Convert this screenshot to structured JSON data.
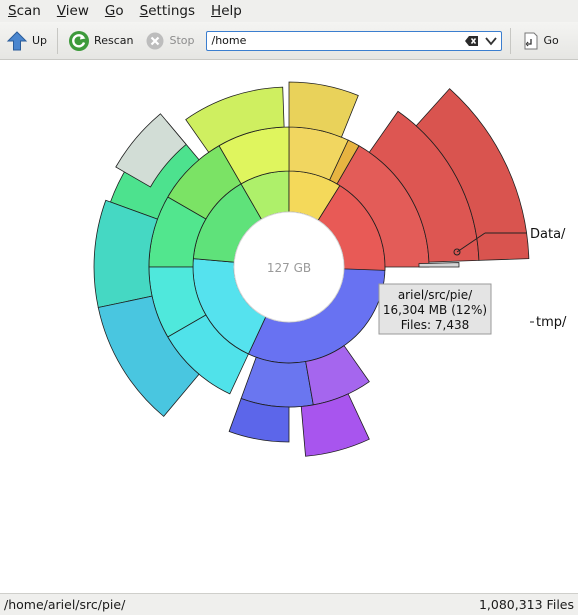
{
  "menubar": {
    "scan": {
      "accel": "S",
      "rest": "can"
    },
    "view": {
      "accel": "V",
      "rest": "iew"
    },
    "go": {
      "accel": "G",
      "rest": "o"
    },
    "settings": {
      "accel": "S",
      "rest": "ettings"
    },
    "help": {
      "accel": "H",
      "rest": "elp"
    }
  },
  "toolbar": {
    "up_label": "Up",
    "rescan_label": "Rescan",
    "stop_label": "Stop",
    "location_value": "/home",
    "go_label": "Go"
  },
  "chart": {
    "center_label": "127 GB",
    "label_data": "Data/",
    "label_tmp": "tmp/",
    "tooltip": {
      "path": "ariel/src/pie/",
      "size": "16,304 MB (12%)",
      "files": "Files: 7,438"
    }
  },
  "statusbar": {
    "path": "/home/ariel/src/pie/",
    "files": "1,080,313 Files"
  },
  "colors": {
    "red": "#e85a56",
    "blue": "#6872f2",
    "green": "#5fe27a",
    "cyan": "#55e2ee",
    "yellow": "#dcef5c"
  }
}
